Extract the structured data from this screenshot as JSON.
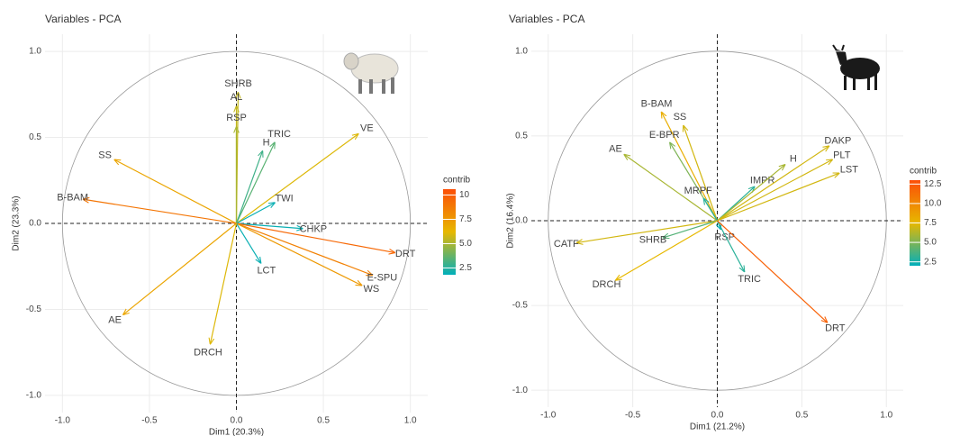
{
  "chart_data": [
    {
      "type": "biplot",
      "title": "Variables - PCA",
      "xlabel": "Dim1 (20.3%)",
      "ylabel": "Dim2 (23.3%)",
      "xlim": [
        -1.1,
        1.1
      ],
      "ylim": [
        -1.1,
        1.1
      ],
      "xticks": [
        {
          "value": -1,
          "label": "-1.0"
        },
        {
          "value": -0.5,
          "label": "-0.5"
        },
        {
          "value": 0,
          "label": "0.0"
        },
        {
          "value": 0.5,
          "label": "0.5"
        },
        {
          "value": 1,
          "label": "1.0"
        }
      ],
      "yticks": [
        {
          "value": -1,
          "label": "-1.0"
        },
        {
          "value": -0.5,
          "label": "-0.5"
        },
        {
          "value": 0,
          "label": "0.0"
        },
        {
          "value": 0.5,
          "label": "0.5"
        },
        {
          "value": 1,
          "label": "1.0"
        }
      ],
      "grid": true,
      "legend_title": "contrib",
      "clim": [
        1.8,
        10.6
      ],
      "cticks": [
        10,
        7.5,
        {
          "value": 5,
          "label": "5.0"
        },
        2.5
      ],
      "gradient": [
        "#00AFBB",
        "#E7B800",
        "#FC4E07"
      ],
      "variables": [
        {
          "name": "SHRB",
          "x": 0.01,
          "y": 0.76,
          "contrib": 5.5
        },
        {
          "name": "AL",
          "x": 0.0,
          "y": 0.68,
          "contrib": 5.5
        },
        {
          "name": "RSP",
          "x": 0.0,
          "y": 0.56,
          "contrib": 5
        },
        {
          "name": "TRIC",
          "x": 0.22,
          "y": 0.47,
          "contrib": 3.5
        },
        {
          "name": "H",
          "x": 0.15,
          "y": 0.42,
          "contrib": 3
        },
        {
          "name": "VE",
          "x": 0.7,
          "y": 0.52,
          "contrib": 6
        },
        {
          "name": "SS",
          "x": -0.7,
          "y": 0.37,
          "contrib": 7
        },
        {
          "name": "B-BAM",
          "x": -0.88,
          "y": 0.14,
          "contrib": 9
        },
        {
          "name": "TWI",
          "x": 0.22,
          "y": 0.12,
          "contrib": 2
        },
        {
          "name": "CHKP",
          "x": 0.38,
          "y": -0.03,
          "contrib": 2
        },
        {
          "name": "DRT",
          "x": 0.91,
          "y": -0.17,
          "contrib": 9.5
        },
        {
          "name": "E-SPU",
          "x": 0.78,
          "y": -0.3,
          "contrib": 8.5
        },
        {
          "name": "WS",
          "x": 0.72,
          "y": -0.36,
          "contrib": 7.5
        },
        {
          "name": "LCT",
          "x": 0.14,
          "y": -0.23,
          "contrib": 2
        },
        {
          "name": "AE",
          "x": -0.65,
          "y": -0.53,
          "contrib": 7
        },
        {
          "name": "DRCH",
          "x": -0.15,
          "y": -0.7,
          "contrib": 6
        }
      ]
    },
    {
      "type": "biplot",
      "title": "Variables - PCA",
      "xlabel": "Dim1 (21.2%)",
      "ylabel": "Dim2 (16.4%)",
      "xlim": [
        -1.1,
        1.1
      ],
      "ylim": [
        -1.1,
        1.1
      ],
      "xticks": [
        {
          "value": -1,
          "label": "-1.0"
        },
        {
          "value": -0.5,
          "label": "-0.5"
        },
        {
          "value": 0,
          "label": "0.0"
        },
        {
          "value": 0.5,
          "label": "0.5"
        },
        {
          "value": 1,
          "label": "1.0"
        }
      ],
      "yticks": [
        {
          "value": -1,
          "label": "-1.0"
        },
        {
          "value": -0.5,
          "label": "-0.5"
        },
        {
          "value": 0,
          "label": "0.0"
        },
        {
          "value": 0.5,
          "label": "0.5"
        },
        {
          "value": 1,
          "label": "1.0"
        }
      ],
      "grid": true,
      "legend_title": "contrib",
      "clim": [
        2,
        13
      ],
      "cticks": [
        12.5,
        {
          "value": 10,
          "label": "10.0"
        },
        7.5,
        {
          "value": 5,
          "label": "5.0"
        },
        2.5
      ],
      "gradient": [
        "#00AFBB",
        "#E7B800",
        "#FC4E07"
      ],
      "variables": [
        {
          "name": "B-BAM",
          "x": -0.33,
          "y": 0.64,
          "contrib": 8
        },
        {
          "name": "SS",
          "x": -0.2,
          "y": 0.56,
          "contrib": 7
        },
        {
          "name": "E-BPR",
          "x": -0.28,
          "y": 0.46,
          "contrib": 5
        },
        {
          "name": "AE",
          "x": -0.55,
          "y": 0.39,
          "contrib": 6
        },
        {
          "name": "MRPF",
          "x": -0.08,
          "y": 0.13,
          "contrib": 3
        },
        {
          "name": "IMPR",
          "x": 0.22,
          "y": 0.2,
          "contrib": 3
        },
        {
          "name": "H",
          "x": 0.4,
          "y": 0.33,
          "contrib": 6
        },
        {
          "name": "DAKP",
          "x": 0.66,
          "y": 0.44,
          "contrib": 7
        },
        {
          "name": "PLT",
          "x": 0.68,
          "y": 0.36,
          "contrib": 7
        },
        {
          "name": "LST",
          "x": 0.72,
          "y": 0.28,
          "contrib": 7
        },
        {
          "name": "CATF",
          "x": -0.83,
          "y": -0.13,
          "contrib": 7
        },
        {
          "name": "SHRB",
          "x": -0.32,
          "y": -0.1,
          "contrib": 4
        },
        {
          "name": "RSP",
          "x": 0.02,
          "y": -0.05,
          "contrib": 2
        },
        {
          "name": "DRCH",
          "x": -0.6,
          "y": -0.35,
          "contrib": 7.5
        },
        {
          "name": "TRIC",
          "x": 0.16,
          "y": -0.3,
          "contrib": 3
        },
        {
          "name": "DRT",
          "x": 0.65,
          "y": -0.6,
          "contrib": 12
        }
      ]
    }
  ]
}
